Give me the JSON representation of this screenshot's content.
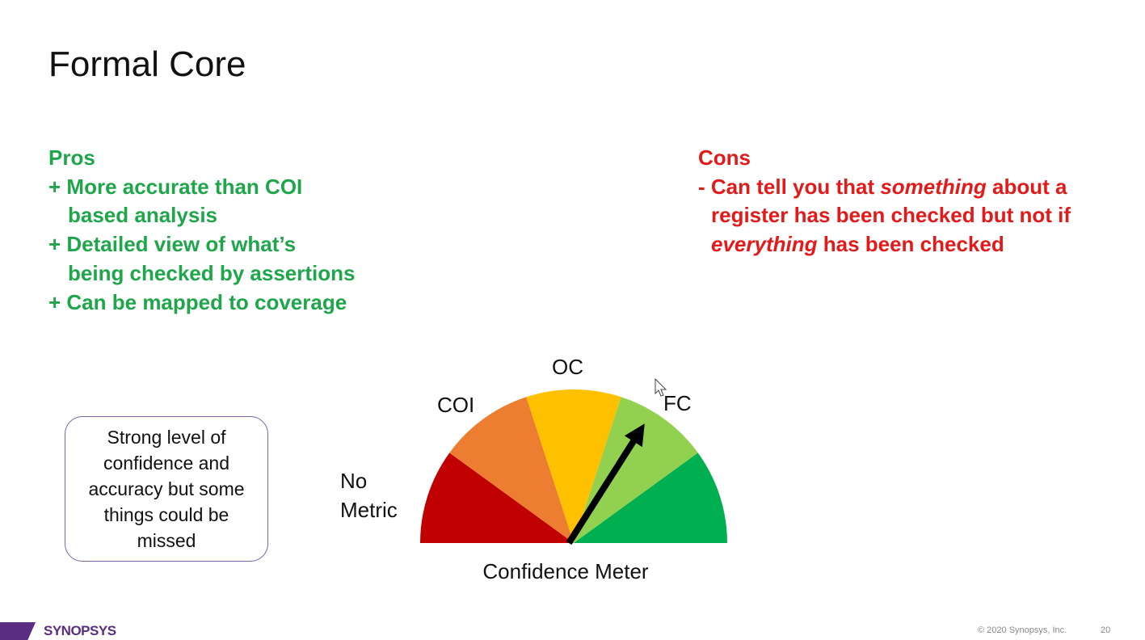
{
  "title": "Formal Core",
  "pros": {
    "heading": "Pros",
    "items": [
      "+ More accurate than COI based analysis",
      "+ Detailed view of what’s being checked by assertions",
      "+ Can be mapped to coverage"
    ]
  },
  "cons": {
    "heading": "Cons",
    "item": {
      "prefix": "- Can tell you that ",
      "em1": "something",
      "mid": " about a register has been checked but not if ",
      "em2": "everything",
      "suffix": " has been checked"
    }
  },
  "callout": "Strong level of confidence and accuracy but some things could be missed",
  "gauge": {
    "labels": {
      "no_metric_line1": "No",
      "no_metric_line2": "Metric",
      "coi": "COI",
      "oc": "OC",
      "fc": "FC"
    },
    "caption": "Confidence Meter",
    "needle_fraction": 0.68,
    "segment_colors": [
      "#c00000",
      "#ed7d31",
      "#ffc000",
      "#92d050",
      "#00b050"
    ]
  },
  "footer": {
    "copyright": "© 2020 Synopsys, Inc.",
    "page": "20",
    "logo_text": "SYNOPSYS"
  }
}
